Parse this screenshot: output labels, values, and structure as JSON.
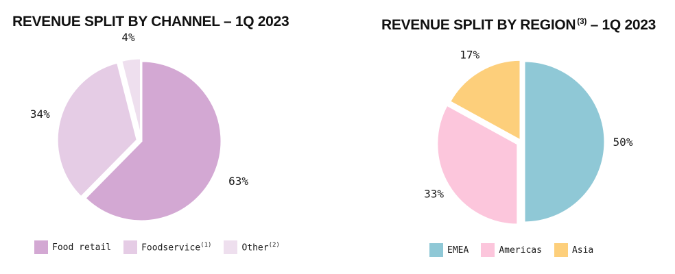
{
  "chart_data": [
    {
      "type": "pie",
      "title": "REVENUE SPLIT BY CHANNEL – 1Q 2023",
      "title_superscript": "",
      "slices": [
        {
          "name": "Food retail",
          "footnote": "",
          "value": 63,
          "label": "63%",
          "color": "#d3a8d3"
        },
        {
          "name": "Foodservice",
          "footnote": "(1)",
          "value": 34,
          "label": "34%",
          "color": "#e5cce5"
        },
        {
          "name": "Other",
          "footnote": "(2)",
          "value": 4,
          "label": "4%",
          "color": "#eedfee"
        }
      ],
      "legend": [
        "Food retail",
        "Foodservice",
        "Other"
      ]
    },
    {
      "type": "pie",
      "title": "REVENUE SPLIT BY REGION",
      "title_superscript": "(3)",
      "title_suffix": " – 1Q 2023",
      "slices": [
        {
          "name": "EMEA",
          "footnote": "",
          "value": 50,
          "label": "50%",
          "color": "#8fc8d6"
        },
        {
          "name": "Americas",
          "footnote": "",
          "value": 33,
          "label": "33%",
          "color": "#fcc6dc"
        },
        {
          "name": "Asia",
          "footnote": "",
          "value": 17,
          "label": "17%",
          "color": "#fdcf7b"
        }
      ],
      "legend": [
        "EMEA",
        "Americas",
        "Asia"
      ]
    }
  ]
}
